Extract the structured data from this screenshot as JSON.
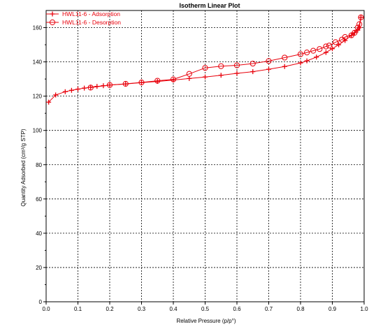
{
  "chart_data": {
    "type": "line",
    "title": "Isotherm Linear Plot",
    "xlabel": "Relative Pressure (p/p°)",
    "ylabel": "Quantity Adsorbed (cm³/g STP)",
    "xlim": [
      0,
      1.0
    ],
    "ylim": [
      0,
      170
    ],
    "xticks": [
      0.0,
      0.1,
      0.2,
      0.3,
      0.4,
      0.5,
      0.6,
      0.7,
      0.8,
      0.9,
      1.0
    ],
    "xtick_labels": [
      "0.0",
      "0.1",
      "0.2",
      "0.3",
      "0.4",
      "0.5",
      "0.6",
      "0.7",
      "0.8",
      "0.9",
      "1.0"
    ],
    "yticks": [
      0,
      20,
      40,
      60,
      80,
      100,
      120,
      140,
      160
    ],
    "grid": true,
    "legend_position": "top-left",
    "series": [
      {
        "name": "HWL11-6 - Adsorption",
        "color": "#e8000b",
        "marker": "plus",
        "x": [
          0.008,
          0.03,
          0.06,
          0.08,
          0.1,
          0.12,
          0.14,
          0.16,
          0.18,
          0.2,
          0.25,
          0.3,
          0.35,
          0.4,
          0.45,
          0.5,
          0.55,
          0.6,
          0.65,
          0.7,
          0.75,
          0.8,
          0.82,
          0.85,
          0.88,
          0.9,
          0.92,
          0.94,
          0.96,
          0.97,
          0.98,
          0.985,
          0.99
        ],
        "y": [
          116.5,
          120.7,
          122.6,
          123.4,
          124.1,
          124.7,
          125.2,
          125.7,
          126.1,
          126.5,
          127.1,
          127.9,
          128.6,
          129.4,
          130.3,
          131.2,
          132.2,
          133.3,
          134.3,
          135.7,
          137.3,
          139.4,
          140.6,
          142.8,
          145.5,
          147.7,
          150.0,
          152.5,
          155.5,
          157.0,
          158.5,
          160.0,
          166.0
        ]
      },
      {
        "name": "HWL11-6 - Desorption",
        "color": "#e8000b",
        "marker": "circle",
        "x": [
          0.99,
          0.985,
          0.98,
          0.97,
          0.96,
          0.94,
          0.93,
          0.91,
          0.89,
          0.88,
          0.86,
          0.84,
          0.82,
          0.8,
          0.75,
          0.7,
          0.65,
          0.6,
          0.55,
          0.5,
          0.45,
          0.4,
          0.35,
          0.3,
          0.25,
          0.2,
          0.14
        ],
        "y": [
          166.0,
          162.0,
          160.0,
          157.0,
          155.5,
          154.5,
          153.0,
          151.5,
          149.5,
          149.0,
          147.5,
          146.5,
          145.5,
          144.5,
          142.5,
          140.5,
          139.0,
          138.0,
          137.5,
          136.5,
          133.0,
          129.8,
          129.0,
          128.0,
          127.2,
          126.5,
          125.0
        ]
      }
    ]
  }
}
